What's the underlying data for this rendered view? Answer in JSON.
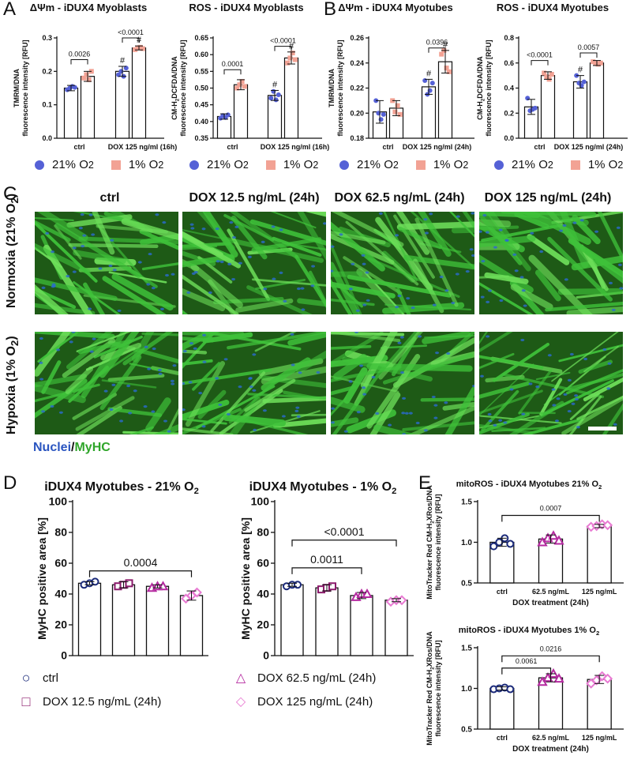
{
  "panel_letters": {
    "a": "A",
    "b": "B",
    "c": "C",
    "d": "D",
    "e": "E"
  },
  "colors": {
    "o21": "#5561d6",
    "o1": "#f2a294",
    "ctrl": "#1b2a7a",
    "dox12": "#8b1a6b",
    "dox62": "#b52aa0",
    "dox125": "#e87ad2",
    "green": "#3fc23a",
    "blue": "#2a55c0"
  },
  "legends": {
    "ab": {
      "o21_prefix": "21% O",
      "o21_sub": "2",
      "o1_prefix": "1% O",
      "o1_sub": "2"
    }
  },
  "panel_c": {
    "columns": [
      "ctrl",
      "DOX 12.5 ng/mL (24h)",
      "DOX 62.5 ng/mL (24h)",
      "DOX 125 ng/mL (24h)"
    ],
    "rows": [
      {
        "prefix": "Normoxia (21% O",
        "sub": "2",
        "suffix": ")"
      },
      {
        "prefix": "Hypoxia (1% O",
        "sub": "2",
        "suffix": ")"
      }
    ],
    "stain_nuclei": "Nuclei",
    "stain_sep": "/",
    "stain_myhc": "MyHC"
  },
  "panel_d_legend": {
    "ctrl": "ctrl",
    "dox12": "DOX 12.5 ng/mL (24h)",
    "dox62": "DOX 62.5 ng/mL (24h)",
    "dox125": "DOX 125 ng/mL (24h)"
  },
  "chart_data": [
    {
      "id": "a1",
      "panel": "A",
      "type": "bar",
      "title": "ΔΨm - iDUX4 Myoblasts",
      "ylabel": [
        "TMRM/DNA",
        "fluorescence intensity [RFU]"
      ],
      "ylim": [
        0,
        0.3
      ],
      "yticks": [
        "0.0",
        "0.1",
        "0.2",
        "0.3"
      ],
      "ytick_values": [
        0,
        0.1,
        0.2,
        0.3
      ],
      "groups": [
        "ctrl",
        "DOX 125 ng/ml (16h)"
      ],
      "series": [
        {
          "name": "21% O2",
          "values": [
            0.15,
            0.2
          ],
          "err": [
            0.008,
            0.015
          ],
          "points": [
            [
              0.145,
              0.15,
              0.155,
              0.152
            ],
            [
              0.19,
              0.2,
              0.185,
              0.21
            ]
          ]
        },
        {
          "name": "1% O2",
          "values": [
            0.185,
            0.27
          ],
          "err": [
            0.015,
            0.006
          ],
          "points": [
            [
              0.18,
              0.19,
              0.175,
              0.2
            ],
            [
              0.265,
              0.27,
              0.272,
              0.268
            ]
          ]
        }
      ],
      "hash": [
        [
          false,
          false
        ],
        [
          true,
          true
        ]
      ],
      "comparisons": [
        {
          "label": "0.0026",
          "from": [
            0,
            0
          ],
          "to": [
            0,
            1
          ],
          "y": 0.235
        },
        {
          "label": "<0.0001",
          "from": [
            1,
            0
          ],
          "to": [
            1,
            1
          ],
          "y": 0.3
        }
      ]
    },
    {
      "id": "a2",
      "panel": "A",
      "type": "bar",
      "title": "ROS - iDUX4 Myoblasts",
      "ylabel": [
        "CM-H2DCFDA/DNA",
        "fluorescence intensity [RFU]"
      ],
      "ylim": [
        0.35,
        0.65
      ],
      "yticks": [
        "0.35",
        "0.40",
        "0.45",
        "0.50",
        "0.55",
        "0.60",
        "0.65"
      ],
      "ytick_values": [
        0.35,
        0.4,
        0.45,
        0.5,
        0.55,
        0.6,
        0.65
      ],
      "groups": [
        "ctrl",
        "DOX 125 ng/ml (16h)"
      ],
      "series": [
        {
          "name": "21% O2",
          "values": [
            0.415,
            0.478
          ],
          "err": [
            0.008,
            0.015
          ],
          "points": [
            [
              0.41,
              0.418,
              0.412,
              0.42
            ],
            [
              0.47,
              0.49,
              0.465,
              0.48
            ]
          ]
        },
        {
          "name": "1% O2",
          "values": [
            0.51,
            0.59
          ],
          "err": [
            0.015,
            0.018
          ],
          "points": [
            [
              0.5,
              0.51,
              0.52,
              0.505
            ],
            [
              0.575,
              0.59,
              0.605,
              0.585
            ]
          ]
        }
      ],
      "hash": [
        [
          false,
          false
        ],
        [
          true,
          true
        ]
      ],
      "comparisons": [
        {
          "label": "0.0001",
          "from": [
            0,
            0
          ],
          "to": [
            0,
            1
          ],
          "y": 0.555
        },
        {
          "label": "<0.0001",
          "from": [
            1,
            0
          ],
          "to": [
            1,
            1
          ],
          "y": 0.625
        }
      ]
    },
    {
      "id": "b1",
      "panel": "B",
      "type": "bar",
      "title": "ΔΨm - iDUX4 Myotubes",
      "ylabel": [
        "TMRM/DNA",
        "fluorescence intensity [RFU]"
      ],
      "ylim": [
        0.18,
        0.26
      ],
      "yticks": [
        "0.18",
        "0.20",
        "0.22",
        "0.24",
        "0.26"
      ],
      "ytick_values": [
        0.18,
        0.2,
        0.22,
        0.24,
        0.26
      ],
      "groups": [
        "ctrl",
        "DOX 125 ng/ml (24h)"
      ],
      "series": [
        {
          "name": "21% O2",
          "values": [
            0.201,
            0.221
          ],
          "err": [
            0.009,
            0.006
          ],
          "points": [
            [
              0.21,
              0.2,
              0.195,
              0.199
            ],
            [
              0.226,
              0.215,
              0.218,
              0.224
            ]
          ]
        },
        {
          "name": "1% O2",
          "values": [
            0.204,
            0.241
          ],
          "err": [
            0.006,
            0.009
          ],
          "points": [
            [
              0.21,
              0.201,
              0.206,
              0.199
            ],
            [
              0.247,
              0.25,
              0.236,
              0.233
            ]
          ]
        }
      ],
      "hash": [
        [
          false,
          false
        ],
        [
          true,
          true
        ]
      ],
      "comparisons": [
        {
          "label": "0.0396",
          "from": [
            1,
            0
          ],
          "to": [
            1,
            1
          ],
          "y": 0.252
        }
      ]
    },
    {
      "id": "b2",
      "panel": "B",
      "type": "bar",
      "title": "ROS - iDUX4 Myotubes",
      "ylabel": [
        "CM-H2DCFDA/DNA",
        "fluorescence intensity [RFU]"
      ],
      "ylim": [
        0,
        0.8
      ],
      "yticks": [
        "0.0",
        "0.2",
        "0.4",
        "0.6",
        "0.8"
      ],
      "ytick_values": [
        0,
        0.2,
        0.4,
        0.6,
        0.8
      ],
      "groups": [
        "ctrl",
        "DOX 125 ng/ml (24h)"
      ],
      "series": [
        {
          "name": "21% O2",
          "values": [
            0.25,
            0.45
          ],
          "err": [
            0.06,
            0.05
          ],
          "points": [
            [
              0.32,
              0.22,
              0.23,
              0.24
            ],
            [
              0.5,
              0.44,
              0.42,
              0.45
            ]
          ]
        },
        {
          "name": "1% O2",
          "values": [
            0.5,
            0.6
          ],
          "err": [
            0.03,
            0.02
          ],
          "points": [
            [
              0.52,
              0.49,
              0.47,
              0.51
            ],
            [
              0.61,
              0.6,
              0.59,
              0.6
            ]
          ]
        }
      ],
      "hash": [
        [
          false,
          false
        ],
        [
          true,
          false
        ]
      ],
      "comparisons": [
        {
          "label": "<0.0001",
          "from": [
            0,
            0
          ],
          "to": [
            0,
            1
          ],
          "y": 0.62
        },
        {
          "label": "0.0057",
          "from": [
            1,
            0
          ],
          "to": [
            1,
            1
          ],
          "y": 0.68
        }
      ]
    },
    {
      "id": "d1",
      "panel": "D",
      "type": "bar",
      "title": "iDUX4 Myotubes - 21% O",
      "title_sub": "2",
      "ylabel": [
        "MyHC positive area [%]"
      ],
      "ylim": [
        0,
        100
      ],
      "yticks": [
        "0",
        "20",
        "40",
        "60",
        "80",
        "100"
      ],
      "ytick_values": [
        0,
        20,
        40,
        60,
        80,
        100
      ],
      "categories": [
        "ctrl",
        "DOX 12.5 ng/mL (24h)",
        "DOX 62.5 ng/mL (24h)",
        "DOX 125 ng/mL (24h)"
      ],
      "values": [
        47,
        46,
        45,
        39
      ],
      "err": [
        1,
        2,
        1,
        3
      ],
      "points": [
        [
          46,
          47,
          48
        ],
        [
          45,
          46,
          47
        ],
        [
          44,
          45,
          45
        ],
        [
          37,
          39,
          41
        ]
      ],
      "comparisons": [
        {
          "label": "0.0004",
          "from": 0,
          "to": 3,
          "y": 55
        }
      ]
    },
    {
      "id": "d2",
      "panel": "D",
      "type": "bar",
      "title": "iDUX4 Myotubes - 1% O",
      "title_sub": "2",
      "ylabel": [
        "MyHC positive area [%]"
      ],
      "ylim": [
        0,
        100
      ],
      "yticks": [
        "0",
        "20",
        "40",
        "60",
        "80",
        "100"
      ],
      "ytick_values": [
        0,
        20,
        40,
        60,
        80,
        100
      ],
      "categories": [
        "ctrl",
        "DOX 12.5 ng/mL (24h)",
        "DOX 62.5 ng/mL (24h)",
        "DOX 125 ng/mL (24h)"
      ],
      "values": [
        46,
        44,
        39,
        36
      ],
      "err": [
        1,
        2,
        2,
        1
      ],
      "points": [
        [
          45,
          46,
          46
        ],
        [
          43,
          44,
          45
        ],
        [
          38,
          40,
          40
        ],
        [
          35,
          36,
          36
        ]
      ],
      "comparisons": [
        {
          "label": "0.0011",
          "from": 0,
          "to": 2,
          "y": 57
        },
        {
          "label": "<0.0001",
          "from": 0,
          "to": 3,
          "y": 75
        }
      ]
    },
    {
      "id": "e1",
      "panel": "E",
      "type": "bar",
      "title": "mitoROS - iDUX4 Myotubes 21% O",
      "title_sub": "2",
      "ylabel": [
        "MitoTracker Red CM-H2XRos/DNA",
        "fluorescence intensity [RFU]"
      ],
      "xlabel": "DOX treatment (24h)",
      "ylim": [
        0.5,
        1.5
      ],
      "yticks": [
        "0.5",
        "1.0",
        "1.5"
      ],
      "ytick_values": [
        0.5,
        1,
        1.5
      ],
      "categories": [
        "ctrl",
        "62.5 ng/mL",
        "125 ng/mL"
      ],
      "values": [
        1.0,
        1.04,
        1.2
      ],
      "err": [
        0.05,
        0.05,
        0.02
      ],
      "points": [
        [
          0.95,
          1.0,
          1.05,
          0.98
        ],
        [
          1.0,
          1.05,
          1.08,
          1.02
        ],
        [
          1.19,
          1.2,
          1.22,
          1.21
        ]
      ],
      "comparisons": [
        {
          "label": "0.0007",
          "from": 0,
          "to": 2,
          "y": 1.33
        }
      ]
    },
    {
      "id": "e2",
      "panel": "E",
      "type": "bar",
      "title": "mitoROS - iDUX4 Myotubes 1% O",
      "title_sub": "2",
      "ylabel": [
        "MitoTracker Red CM-H2XRos/DNA",
        "fluorescence intensity [RFU]"
      ],
      "xlabel": "DOX treatment (24h)",
      "ylim": [
        0.5,
        1.5
      ],
      "yticks": [
        "0.5",
        "1.0",
        "1.5"
      ],
      "ytick_values": [
        0.5,
        1,
        1.5
      ],
      "categories": [
        "ctrl",
        "62.5 ng/mL",
        "125 ng/mL"
      ],
      "values": [
        1.0,
        1.13,
        1.11
      ],
      "err": [
        0.02,
        0.05,
        0.05
      ],
      "points": [
        [
          0.99,
          1.0,
          1.01,
          0.99
        ],
        [
          1.08,
          1.13,
          1.18,
          1.12
        ],
        [
          1.06,
          1.1,
          1.15,
          1.12
        ]
      ],
      "comparisons": [
        {
          "label": "0.0061",
          "from": 0,
          "to": 1,
          "y": 1.25
        },
        {
          "label": "0.0216",
          "from": 0,
          "to": 2,
          "y": 1.4
        }
      ]
    }
  ]
}
